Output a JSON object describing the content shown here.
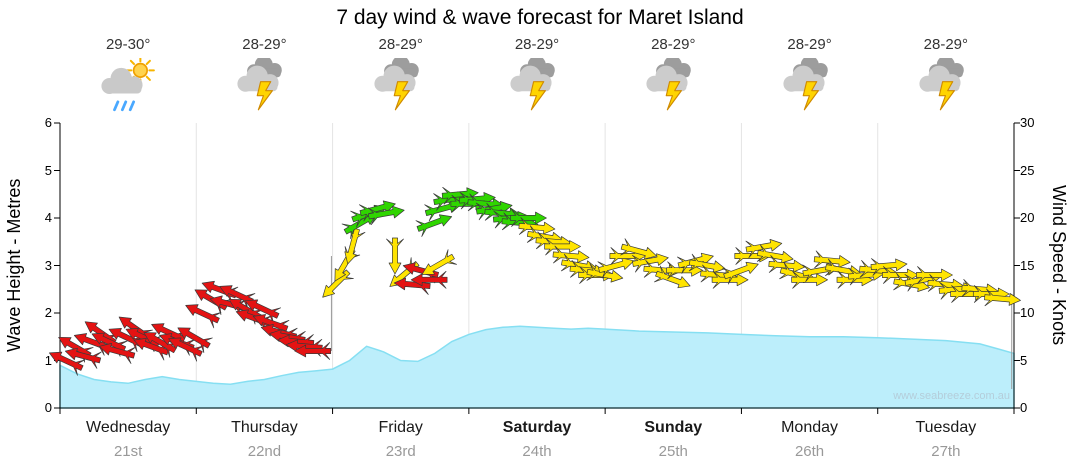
{
  "title": "7 day wind & wave forecast for Maret Island",
  "watermark": "www.seabreeze.com.au",
  "axes": {
    "left_label": "Wave Height - Metres",
    "right_label": "Wind Speed - Knots",
    "left_ticks": [
      0,
      1,
      2,
      3,
      4,
      5,
      6
    ],
    "right_ticks": [
      0,
      5,
      10,
      15,
      20,
      25,
      30
    ]
  },
  "days": [
    {
      "name": "Wednesday",
      "date": "21st",
      "temp": "29-30°",
      "icon": "sun-shower",
      "bold": false
    },
    {
      "name": "Thursday",
      "date": "22nd",
      "temp": "28-29°",
      "icon": "storm",
      "bold": false
    },
    {
      "name": "Friday",
      "date": "23rd",
      "temp": "28-29°",
      "icon": "storm",
      "bold": false
    },
    {
      "name": "Saturday",
      "date": "24th",
      "temp": "28-29°",
      "icon": "storm",
      "bold": true
    },
    {
      "name": "Sunday",
      "date": "25th",
      "temp": "28-29°",
      "icon": "storm",
      "bold": true
    },
    {
      "name": "Monday",
      "date": "26th",
      "temp": "28-29°",
      "icon": "storm",
      "bold": false
    },
    {
      "name": "Tuesday",
      "date": "27th",
      "temp": "28-29°",
      "icon": "storm",
      "bold": false
    }
  ],
  "chart_data": {
    "type": "area+wind-arrows",
    "x_unit": "hours from Wednesday 00:00",
    "x_range": [
      0,
      168
    ],
    "day_width_hours": 24,
    "wave_ylim": [
      0,
      6
    ],
    "wind_ylim": [
      0,
      30
    ],
    "grid": "vertical day separators only",
    "colors": {
      "red": "#e41313",
      "yellow": "#ffe400",
      "green": "#2fd500",
      "wave_fill": "#bceefb",
      "wave_line": "#86dff2",
      "grid_line": "#e4e4e4",
      "axis": "#000000"
    },
    "wave_height_m": {
      "hours": [
        0,
        3,
        6,
        9,
        12,
        15,
        18,
        21,
        24,
        27,
        30,
        33,
        36,
        39,
        42,
        45,
        48,
        51,
        54,
        57,
        60,
        63,
        66,
        69,
        72,
        75,
        78,
        81,
        84,
        87,
        90,
        93,
        96,
        102,
        108,
        114,
        120,
        126,
        132,
        138,
        144,
        150,
        156,
        162,
        165,
        168
      ],
      "metres": [
        0.9,
        0.72,
        0.6,
        0.55,
        0.52,
        0.6,
        0.66,
        0.6,
        0.56,
        0.52,
        0.5,
        0.56,
        0.6,
        0.68,
        0.75,
        0.78,
        0.82,
        1.0,
        1.3,
        1.18,
        1.0,
        0.98,
        1.15,
        1.4,
        1.55,
        1.65,
        1.7,
        1.72,
        1.7,
        1.68,
        1.66,
        1.68,
        1.66,
        1.62,
        1.6,
        1.58,
        1.55,
        1.52,
        1.5,
        1.5,
        1.48,
        1.45,
        1.42,
        1.35,
        1.25,
        1.15
      ]
    },
    "wind_arrows": {
      "columns": [
        "hour",
        "knots",
        "dir_deg_cw_from_east",
        "color"
      ],
      "rows": [
        [
          1,
          5,
          205,
          "red"
        ],
        [
          2.5,
          6.5,
          210,
          "red"
        ],
        [
          4,
          5.5,
          195,
          "red"
        ],
        [
          5.5,
          7,
          200,
          "red"
        ],
        [
          7,
          8,
          215,
          "red"
        ],
        [
          8.5,
          7,
          205,
          "red"
        ],
        [
          10,
          6,
          195,
          "red"
        ],
        [
          11.5,
          7.5,
          205,
          "red"
        ],
        [
          13,
          8.5,
          215,
          "red"
        ],
        [
          14.5,
          7.5,
          205,
          "red"
        ],
        [
          16,
          6.5,
          200,
          "red"
        ],
        [
          17.5,
          7,
          210,
          "red"
        ],
        [
          19,
          8,
          205,
          "red"
        ],
        [
          20.5,
          7,
          200,
          "red"
        ],
        [
          22,
          6.5,
          205,
          "red"
        ],
        [
          23.5,
          7.5,
          210,
          "red"
        ],
        [
          25,
          10,
          205,
          "red"
        ],
        [
          26.5,
          11.5,
          210,
          "red"
        ],
        [
          28,
          12.5,
          200,
          "red"
        ],
        [
          29.5,
          11,
          195,
          "red"
        ],
        [
          31,
          12,
          205,
          "red"
        ],
        [
          32.5,
          10.5,
          210,
          "red"
        ],
        [
          34,
          9.5,
          200,
          "red"
        ],
        [
          35.5,
          10.5,
          205,
          "red"
        ],
        [
          37,
          9,
          200,
          "red"
        ],
        [
          38.5,
          8,
          195,
          "red"
        ],
        [
          40,
          7.5,
          190,
          "red"
        ],
        [
          41.5,
          7,
          185,
          "red"
        ],
        [
          43,
          6.5,
          185,
          "red"
        ],
        [
          44.5,
          6,
          180,
          "red"
        ],
        [
          48.5,
          13,
          135,
          "yellow"
        ],
        [
          50,
          15,
          120,
          "yellow"
        ],
        [
          51.5,
          17,
          105,
          "yellow"
        ],
        [
          53,
          19.5,
          330,
          "green"
        ],
        [
          54.5,
          20.5,
          340,
          "green"
        ],
        [
          56,
          21,
          345,
          "green"
        ],
        [
          57.5,
          20.5,
          350,
          "green"
        ],
        [
          59,
          16,
          90,
          "yellow"
        ],
        [
          60.5,
          14,
          140,
          "yellow"
        ],
        [
          62,
          13,
          185,
          "red"
        ],
        [
          63.5,
          14.5,
          195,
          "red"
        ],
        [
          65,
          13.5,
          180,
          "red"
        ],
        [
          66.5,
          15,
          150,
          "yellow"
        ],
        [
          66,
          19.5,
          340,
          "green"
        ],
        [
          67.5,
          21,
          345,
          "green"
        ],
        [
          69,
          22,
          350,
          "green"
        ],
        [
          70.5,
          22.5,
          355,
          "green"
        ],
        [
          72,
          21.5,
          0,
          "green"
        ],
        [
          73.5,
          22,
          355,
          "green"
        ],
        [
          75,
          21.5,
          5,
          "green"
        ],
        [
          76.5,
          21,
          350,
          "green"
        ],
        [
          78,
          20.5,
          5,
          "green"
        ],
        [
          79.5,
          20,
          355,
          "green"
        ],
        [
          81,
          19.5,
          5,
          "green"
        ],
        [
          82.5,
          20,
          0,
          "green"
        ],
        [
          84,
          19,
          5,
          "yellow"
        ],
        [
          85.5,
          18,
          10,
          "yellow"
        ],
        [
          87,
          17.5,
          5,
          "yellow"
        ],
        [
          88.5,
          17,
          0,
          "yellow"
        ],
        [
          90,
          16,
          5,
          "yellow"
        ],
        [
          91.5,
          15,
          10,
          "yellow"
        ],
        [
          93,
          14.5,
          5,
          "yellow"
        ],
        [
          94.5,
          14,
          0,
          "yellow"
        ],
        [
          96,
          14,
          10,
          "yellow"
        ],
        [
          98,
          15,
          345,
          "yellow"
        ],
        [
          100,
          16,
          0,
          "yellow"
        ],
        [
          102,
          16.5,
          15,
          "yellow"
        ],
        [
          104,
          15.5,
          350,
          "yellow"
        ],
        [
          106,
          14.5,
          5,
          "yellow"
        ],
        [
          108,
          13.5,
          20,
          "yellow"
        ],
        [
          110,
          14.5,
          0,
          "yellow"
        ],
        [
          112,
          15.5,
          345,
          "yellow"
        ],
        [
          114,
          15,
          10,
          "yellow"
        ],
        [
          116,
          14,
          5,
          "yellow"
        ],
        [
          118,
          13.5,
          0,
          "yellow"
        ],
        [
          120,
          14.5,
          340,
          "yellow"
        ],
        [
          122,
          16,
          0,
          "yellow"
        ],
        [
          124,
          17,
          350,
          "yellow"
        ],
        [
          126,
          16,
          10,
          "yellow"
        ],
        [
          128,
          15,
          5,
          "yellow"
        ],
        [
          130,
          14,
          15,
          "yellow"
        ],
        [
          132,
          13.5,
          0,
          "yellow"
        ],
        [
          134,
          14.5,
          350,
          "yellow"
        ],
        [
          136,
          15.5,
          5,
          "yellow"
        ],
        [
          138,
          14.5,
          10,
          "yellow"
        ],
        [
          140,
          13.5,
          0,
          "yellow"
        ],
        [
          142,
          14,
          355,
          "yellow"
        ],
        [
          144,
          14.5,
          5,
          "yellow"
        ],
        [
          146,
          15,
          355,
          "yellow"
        ],
        [
          148,
          14,
          0,
          "yellow"
        ],
        [
          150,
          13,
          10,
          "yellow"
        ],
        [
          152,
          13.5,
          350,
          "yellow"
        ],
        [
          154,
          14,
          0,
          "yellow"
        ],
        [
          156,
          13,
          5,
          "yellow"
        ],
        [
          158,
          12.5,
          355,
          "yellow"
        ],
        [
          160,
          12,
          0,
          "yellow"
        ],
        [
          162,
          12.5,
          5,
          "yellow"
        ],
        [
          164,
          12,
          0,
          "yellow"
        ],
        [
          166,
          11.5,
          5,
          "yellow"
        ]
      ]
    },
    "wind_shift_lines": [
      {
        "hour": 47.8,
        "knots_from": 16,
        "knots_to": 6
      },
      {
        "hour": 167.6,
        "knots_from": 12,
        "knots_to": 2
      }
    ]
  }
}
